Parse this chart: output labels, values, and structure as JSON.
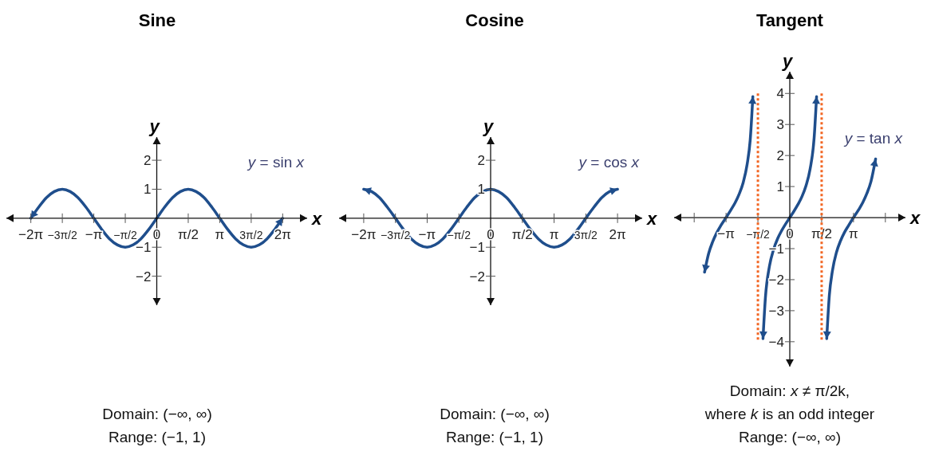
{
  "chart_data": [
    {
      "type": "line",
      "title": "Sine",
      "xlabel": "x",
      "ylabel": "y",
      "xlim": [
        -7.5,
        7.5
      ],
      "ylim": [
        -3,
        2.8
      ],
      "xticks": [
        {
          "value": -6.28,
          "label": "−2π"
        },
        {
          "value": -4.71,
          "label": "−3π/2"
        },
        {
          "value": -3.14,
          "label": "−π"
        },
        {
          "value": -1.57,
          "label": "−π/2"
        },
        {
          "value": 0,
          "label": "0"
        },
        {
          "value": 1.57,
          "label": "π/2"
        },
        {
          "value": 3.14,
          "label": "π"
        },
        {
          "value": 4.71,
          "label": "3π/2"
        },
        {
          "value": 6.28,
          "label": "2π"
        }
      ],
      "yticks": [
        {
          "value": -2,
          "label": "−2"
        },
        {
          "value": -1,
          "label": "−1"
        },
        1,
        2
      ],
      "series": [
        {
          "name": "y = sin x",
          "color": "#1f4e8c",
          "x": [
            -6.28,
            -5.89,
            -5.5,
            -5.11,
            -4.71,
            -4.32,
            -3.93,
            -3.53,
            -3.14,
            -2.75,
            -2.36,
            -1.96,
            -1.57,
            -1.18,
            -0.79,
            -0.39,
            0,
            0.39,
            0.79,
            1.18,
            1.57,
            1.96,
            2.36,
            2.75,
            3.14,
            3.53,
            3.93,
            4.32,
            4.71,
            5.11,
            5.5,
            5.89,
            6.28
          ],
          "values": [
            0,
            0.38,
            0.71,
            0.92,
            1,
            0.92,
            0.71,
            0.38,
            0,
            -0.38,
            -0.71,
            -0.92,
            -1,
            -0.92,
            -0.71,
            -0.38,
            0,
            0.38,
            0.71,
            0.92,
            1,
            0.92,
            0.71,
            0.38,
            0,
            -0.38,
            -0.71,
            -0.92,
            -1,
            -0.92,
            -0.71,
            -0.38,
            0
          ]
        }
      ],
      "marker": "none",
      "grid": false,
      "annotations": [
        "Domain: (−∞, ∞)",
        "Range: (−1, 1)"
      ]
    },
    {
      "type": "line",
      "title": "Cosine",
      "xlabel": "x",
      "ylabel": "y",
      "xlim": [
        -7.5,
        7.5
      ],
      "ylim": [
        -3,
        2.8
      ],
      "xticks": [
        {
          "value": -6.28,
          "label": "−2π"
        },
        {
          "value": -4.71,
          "label": "−3π/2"
        },
        {
          "value": -3.14,
          "label": "−π"
        },
        {
          "value": -1.57,
          "label": "−π/2"
        },
        {
          "value": 0,
          "label": "0"
        },
        {
          "value": 1.57,
          "label": "π/2"
        },
        {
          "value": 3.14,
          "label": "π"
        },
        {
          "value": 4.71,
          "label": "3π/2"
        },
        {
          "value": 6.28,
          "label": "2π"
        }
      ],
      "yticks": [
        {
          "value": -2,
          "label": "−2"
        },
        {
          "value": -1,
          "label": "−1"
        },
        1,
        2
      ],
      "series": [
        {
          "name": "y = cos x",
          "color": "#1f4e8c",
          "x": [
            -6.28,
            -5.89,
            -5.5,
            -5.11,
            -4.71,
            -4.32,
            -3.93,
            -3.53,
            -3.14,
            -2.75,
            -2.36,
            -1.96,
            -1.57,
            -1.18,
            -0.79,
            -0.39,
            0,
            0.39,
            0.79,
            1.18,
            1.57,
            1.96,
            2.36,
            2.75,
            3.14,
            3.53,
            3.93,
            4.32,
            4.71,
            5.11,
            5.5,
            5.89,
            6.28
          ],
          "values": [
            1,
            0.92,
            0.71,
            0.38,
            0,
            -0.38,
            -0.71,
            -0.92,
            -1,
            -0.92,
            -0.71,
            -0.38,
            0,
            0.38,
            0.71,
            0.92,
            1,
            0.92,
            0.71,
            0.38,
            0,
            -0.38,
            -0.71,
            -0.92,
            -1,
            -0.92,
            -0.71,
            -0.38,
            0,
            0.38,
            0.71,
            0.92,
            1
          ]
        }
      ],
      "marker": "none",
      "grid": false,
      "annotations": [
        "Domain: (−∞, ∞)",
        "Range: (−1, 1)"
      ]
    },
    {
      "type": "line",
      "title": "Tangent",
      "xlabel": "x",
      "ylabel": "y",
      "xlim": [
        -5.7,
        5.7
      ],
      "ylim": [
        -4.8,
        4.7
      ],
      "xticks": [
        {
          "value": -4.71,
          "label": null
        },
        {
          "value": -3.14,
          "label": "−π"
        },
        {
          "value": -1.57,
          "label": "−π/2"
        },
        {
          "value": 0,
          "label": "0"
        },
        {
          "value": 1.57,
          "label": "π/2"
        },
        {
          "value": 3.14,
          "label": "π"
        },
        {
          "value": 4.71,
          "label": null
        }
      ],
      "yticks": [
        {
          "value": -4,
          "label": "−4"
        },
        {
          "value": -3,
          "label": "−3"
        },
        {
          "value": -2,
          "label": "−2"
        },
        {
          "value": -1,
          "label": "−1"
        },
        1,
        2,
        3,
        4
      ],
      "series": [
        {
          "name": "y = tan x",
          "color": "#1f4e8c",
          "x": [
            -4.2,
            -4.0,
            -3.8,
            -3.6,
            -3.4,
            -3.14,
            -2.9,
            -2.7,
            -2.5,
            -2.3,
            -2.1,
            -1.95,
            -1.82,
            -1.57,
            -1.32,
            -1.2,
            -1.0,
            -0.8,
            -0.6,
            -0.4,
            -0.2,
            0,
            0.2,
            0.4,
            0.6,
            0.8,
            1.0,
            1.2,
            1.32,
            1.57,
            1.82,
            1.95,
            2.1,
            2.3,
            2.5,
            2.7,
            2.9,
            3.14,
            3.4,
            3.6,
            3.8,
            4.0,
            4.23
          ],
          "values": [
            -1.76,
            -1.16,
            -0.78,
            -0.49,
            -0.26,
            0,
            0.25,
            0.47,
            0.75,
            1.12,
            1.72,
            2.5,
            3.9,
            null,
            -3.9,
            -2.57,
            -1.56,
            -1.03,
            -0.68,
            -0.42,
            -0.2,
            0,
            0.2,
            0.42,
            0.68,
            1.03,
            1.56,
            2.57,
            3.9,
            null,
            -3.9,
            -2.5,
            -1.72,
            -1.12,
            -0.75,
            -0.47,
            -0.25,
            0,
            0.26,
            0.49,
            0.78,
            1.16,
            1.89
          ]
        }
      ],
      "ref_lines": [
        {
          "axis": "x",
          "value": -1.57,
          "color": "#f26522",
          "line_style": "dotted"
        },
        {
          "axis": "x",
          "value": 1.57,
          "color": "#f26522",
          "line_style": "dotted"
        }
      ],
      "marker": "none",
      "grid": false,
      "annotations": [
        "Domain: x ≠ π/2k,",
        "where k is an odd integer",
        "Range: (−∞, ∞)"
      ]
    }
  ]
}
